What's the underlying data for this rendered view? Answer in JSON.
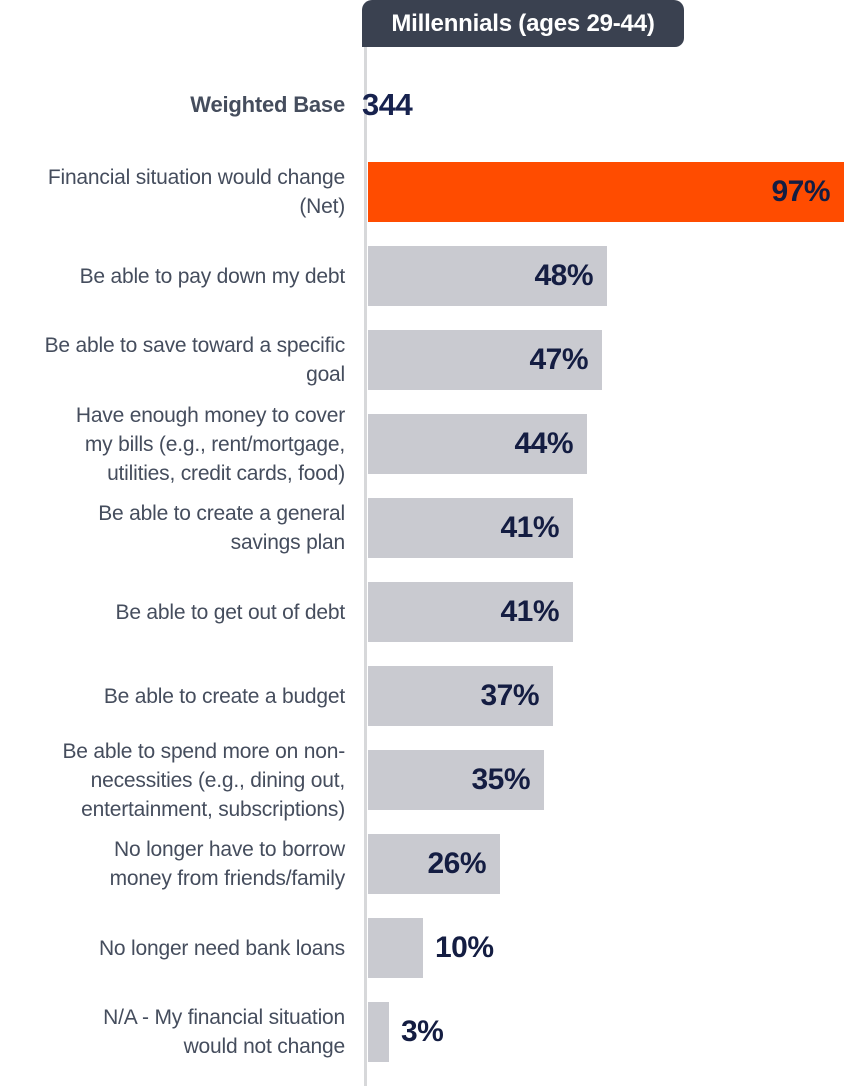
{
  "chart_data": {
    "type": "bar",
    "orientation": "horizontal",
    "tab_label": "Millennials (ages 29-44)",
    "weighted_base": {
      "label": "Weighted Base",
      "value": "344"
    },
    "categories": [
      "Financial situation would change\n(Net)",
      "Be able to pay down my debt",
      "Be able to save toward a specific\ngoal",
      "Have enough money to cover\nmy bills (e.g., rent/mortgage,\nutilities, credit cards, food)",
      "Be able to create a general\nsavings plan",
      "Be able to get out of debt",
      "Be able to create a budget",
      "Be able to spend more on non-\nnecessities (e.g., dining out,\nentertainment, subscriptions)",
      "No longer have to borrow\nmoney from friends/family",
      "No longer need bank loans",
      "N/A - My financial situation\nwould not change"
    ],
    "values": [
      97,
      48,
      47,
      44,
      41,
      41,
      37,
      35,
      26,
      10,
      3
    ],
    "value_labels": [
      "97%",
      "48%",
      "47%",
      "44%",
      "41%",
      "41%",
      "37%",
      "35%",
      "26%",
      "10%",
      "3%"
    ],
    "highlight_index": 0,
    "xlim": [
      0,
      100
    ],
    "legend": "none",
    "grid": "off",
    "colors": {
      "bar_default": "#c9cad0",
      "bar_highlight": "#ff4c00",
      "value_text": "#141d42",
      "weighted_base_value_text": "#17224e",
      "category_text": "#454d5d",
      "tab_bg": "#3a4150",
      "tab_text": "#ffffff",
      "axis_line": "#d7d8da",
      "background": "#ffffff"
    }
  }
}
